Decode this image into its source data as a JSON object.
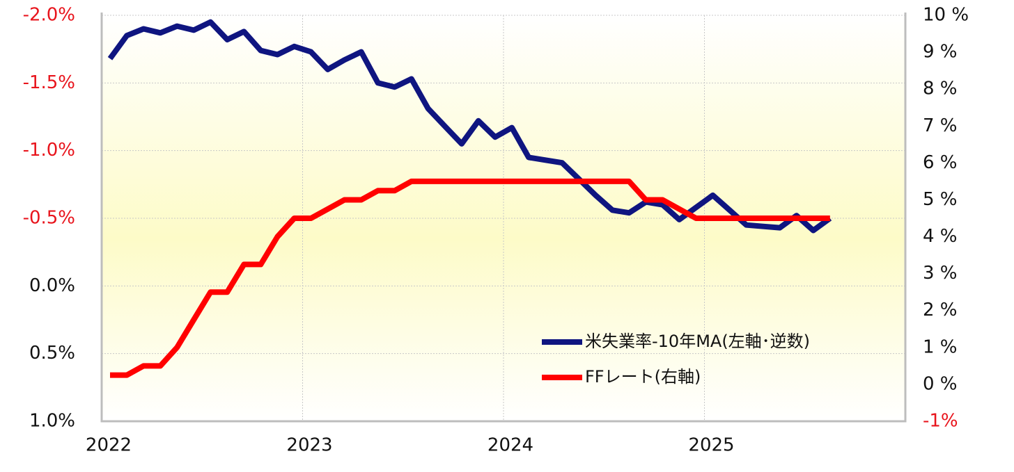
{
  "chart_data": {
    "type": "line",
    "x": [
      2022.0417,
      2022.125,
      2022.2083,
      2022.2917,
      2022.375,
      2022.4583,
      2022.5417,
      2022.625,
      2022.7083,
      2022.7917,
      2022.875,
      2022.9583,
      2023.0417,
      2023.125,
      2023.2083,
      2023.2917,
      2023.375,
      2023.4583,
      2023.5417,
      2023.625,
      2023.7083,
      2023.7917,
      2023.875,
      2023.9583,
      2024.0417,
      2024.125,
      2024.2083,
      2024.2917,
      2024.375,
      2024.4583,
      2024.5417,
      2024.625,
      2024.7083,
      2024.7917,
      2024.875,
      2024.9583,
      2025.0417,
      2025.125,
      2025.2083,
      2025.2917,
      2025.375,
      2025.4583,
      2025.5417,
      2025.625
    ],
    "xlim": [
      2022,
      2026
    ],
    "xticks": [
      2022,
      2023,
      2024,
      2025
    ],
    "ylim": [
      1.0,
      -2.0
    ],
    "yticks": [
      {
        "value": -2.0,
        "label": "-2.0%"
      },
      {
        "value": -1.5,
        "label": "-1.5%"
      },
      {
        "value": -1.0,
        "label": "-1.0%"
      },
      {
        "value": -0.5,
        "label": "-0.5%"
      },
      {
        "value": 0.0,
        "label": "0.0%"
      },
      {
        "value": 0.5,
        "label": "0.5%"
      },
      {
        "value": 1.0,
        "label": "1.0%"
      }
    ],
    "y2lim": [
      -1,
      10
    ],
    "y2ticks": [
      {
        "value": 10,
        "label": "10 %"
      },
      {
        "value": 9,
        "label": "9 %"
      },
      {
        "value": 8,
        "label": "8 %"
      },
      {
        "value": 7,
        "label": "7 %"
      },
      {
        "value": 6,
        "label": "6 %"
      },
      {
        "value": 5,
        "label": "5 %"
      },
      {
        "value": 4,
        "label": "4 %"
      },
      {
        "value": 3,
        "label": "3 %"
      },
      {
        "value": 2,
        "label": "2 %"
      },
      {
        "value": 1,
        "label": "1 %"
      },
      {
        "value": 0,
        "label": "0 %"
      },
      {
        "value": -1,
        "label": "-1%"
      }
    ],
    "grid": true,
    "legend": "lower right",
    "series": [
      {
        "name": "米失業率-10年MA(左軸･逆数)",
        "color": "#0f1580",
        "axis": "y",
        "values": [
          -1.68,
          -1.85,
          -1.9,
          -1.87,
          -1.92,
          -1.89,
          -1.95,
          -1.82,
          -1.88,
          -1.74,
          -1.71,
          -1.77,
          -1.73,
          -1.6,
          -1.67,
          -1.73,
          -1.5,
          -1.47,
          -1.53,
          -1.31,
          -1.18,
          -1.05,
          -1.22,
          -1.1,
          -1.17,
          -0.95,
          -0.93,
          -0.91,
          -0.79,
          -0.67,
          -0.56,
          -0.54,
          -0.62,
          -0.6,
          -0.49,
          -0.58,
          -0.67,
          -0.56,
          -0.45,
          -0.44,
          -0.43,
          -0.52,
          -0.41,
          -0.5
        ]
      },
      {
        "name": "FFレート(右軸)",
        "color": "#ff0000",
        "axis": "y2",
        "values": [
          0.25,
          0.25,
          0.5,
          0.5,
          1.0,
          1.75,
          2.5,
          2.5,
          3.25,
          3.25,
          4.0,
          4.5,
          4.5,
          4.75,
          5.0,
          5.0,
          5.25,
          5.25,
          5.5,
          5.5,
          5.5,
          5.5,
          5.5,
          5.5,
          5.5,
          5.5,
          5.5,
          5.5,
          5.5,
          5.5,
          5.5,
          5.5,
          5.0,
          5.0,
          4.75,
          4.5,
          4.5,
          4.5,
          4.5,
          4.5,
          4.5,
          4.5,
          4.5,
          4.5
        ]
      }
    ]
  }
}
